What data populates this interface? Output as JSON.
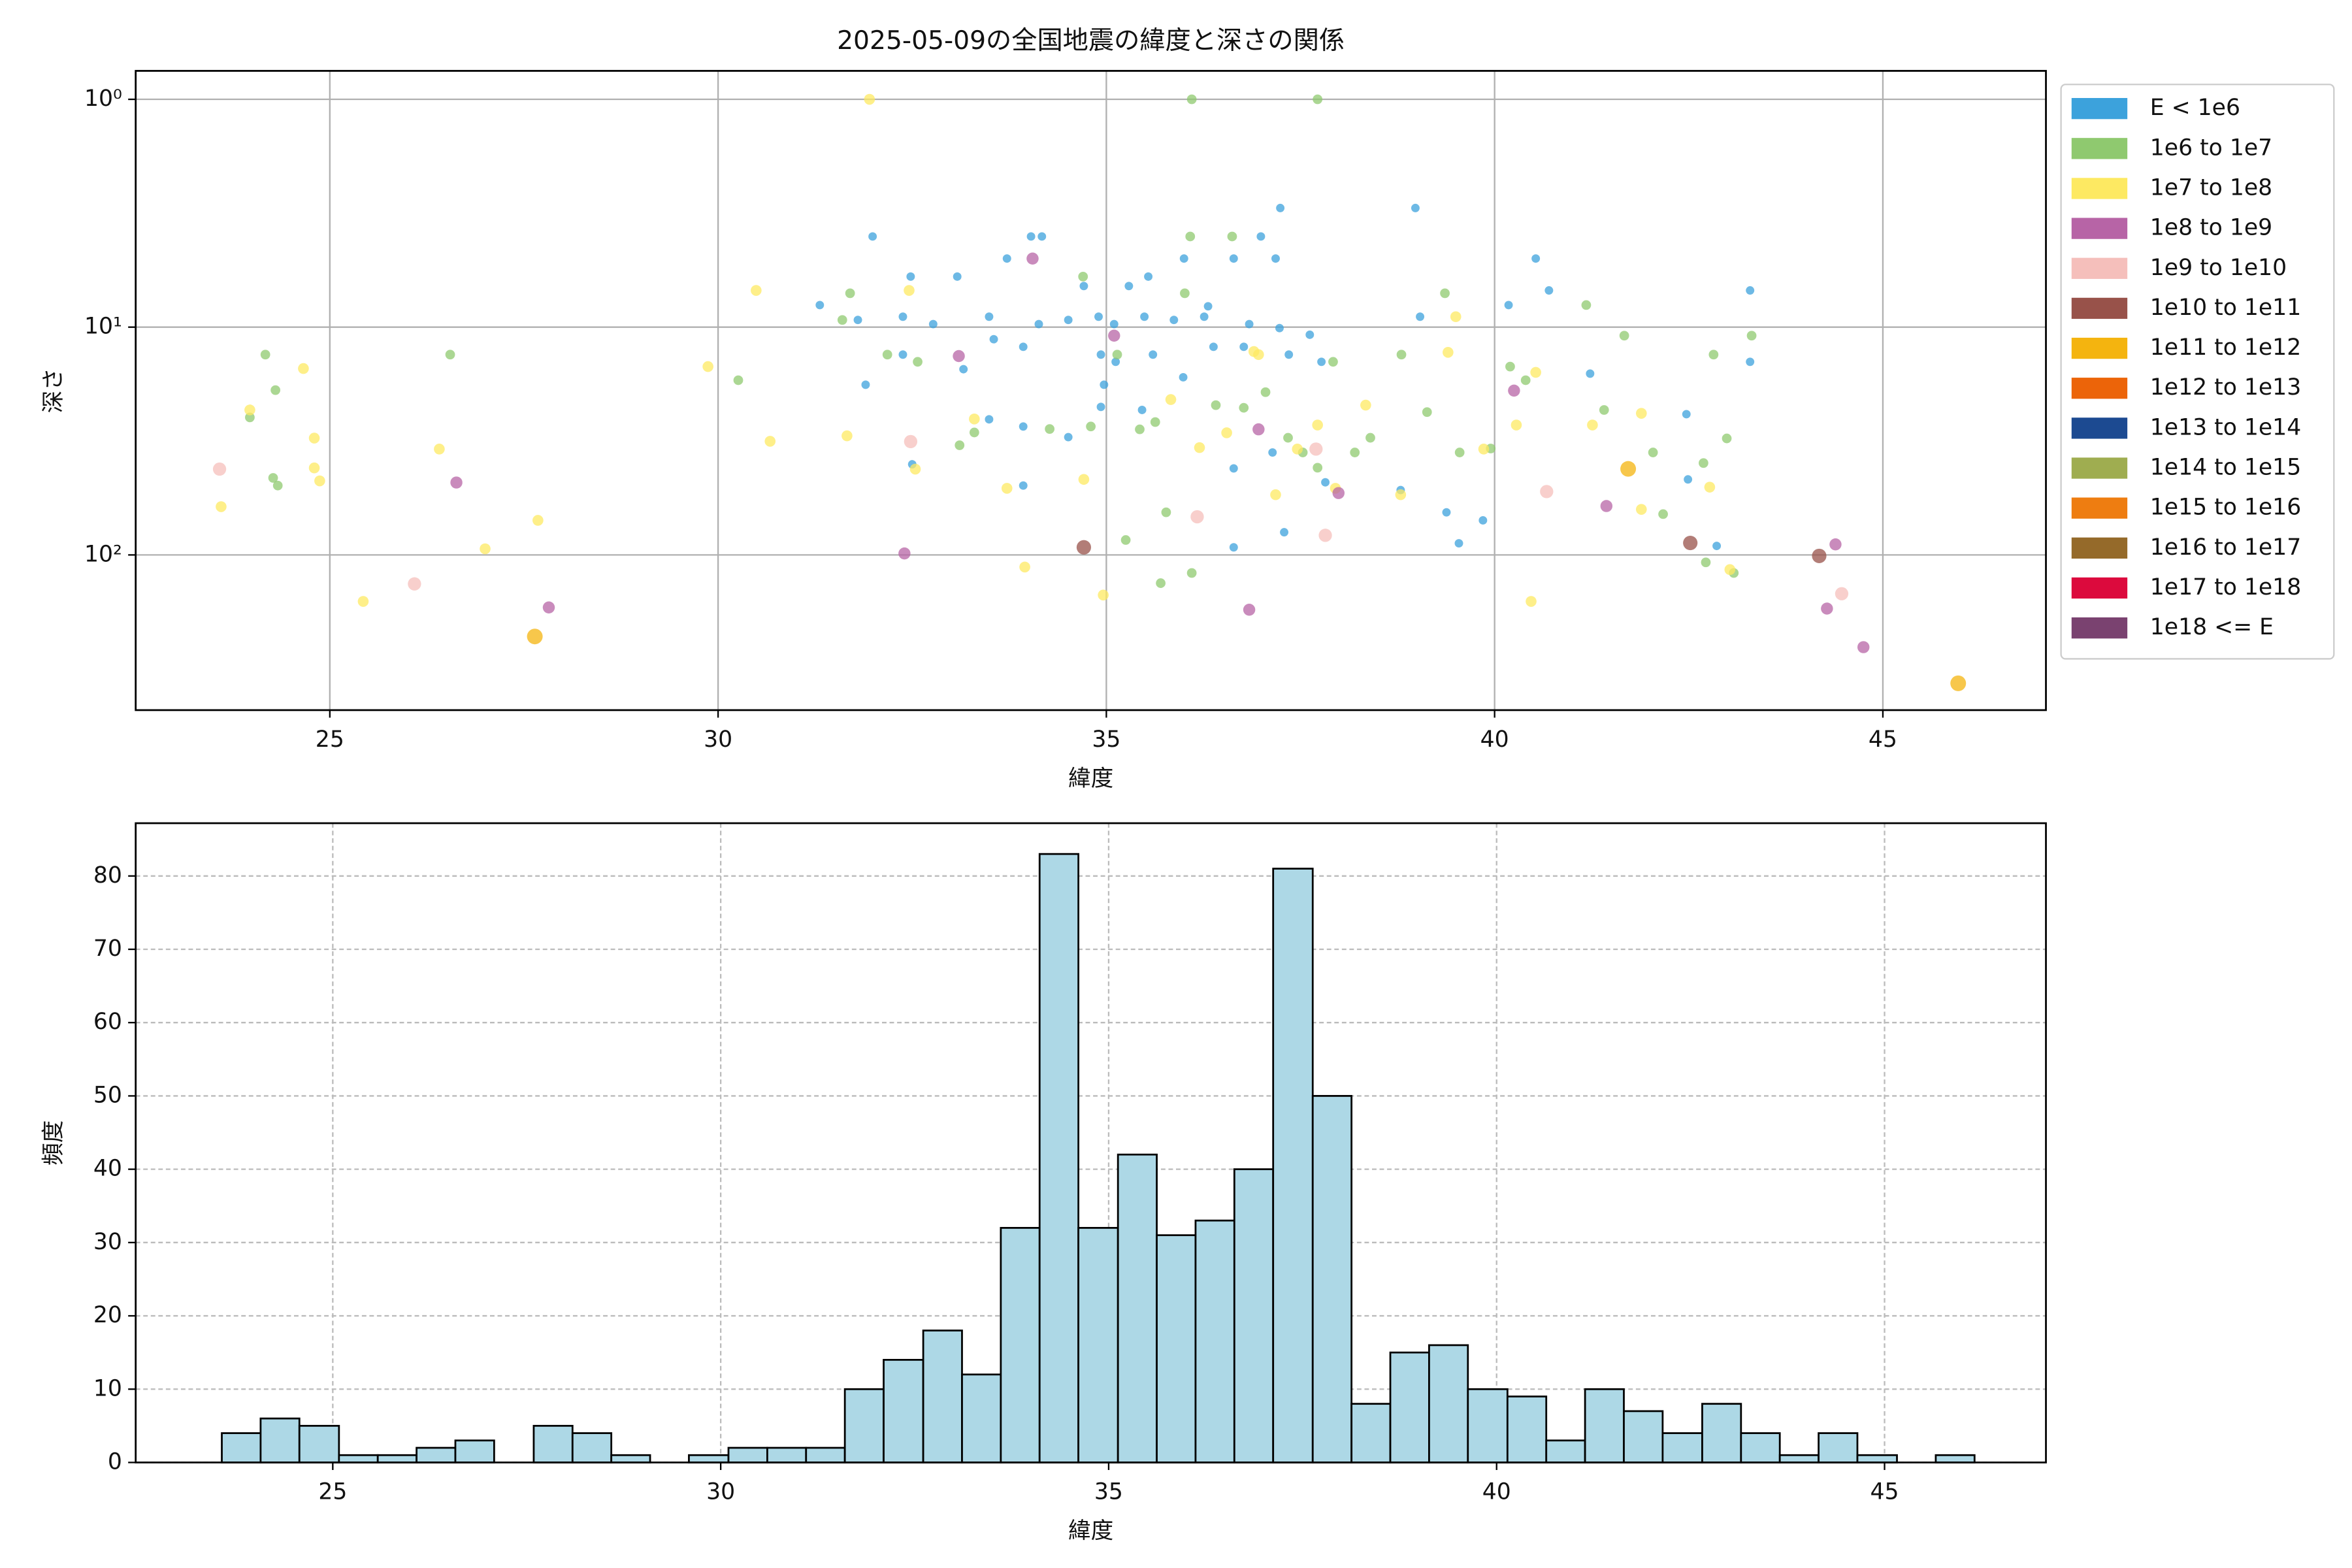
{
  "chart_data": [
    {
      "type": "scatter",
      "title": "2025-05-09の全国地震の緯度と深さの関係",
      "xlabel": "緯度",
      "ylabel": "深さ",
      "xlim": [
        22.5,
        47.1
      ],
      "xticks": [
        25,
        30,
        35,
        40,
        45
      ],
      "ylim": [
        480,
        0.75
      ],
      "log_y": true,
      "yticks": [
        {
          "value": 1,
          "label": "10⁰"
        },
        {
          "value": 10,
          "label": "10¹"
        },
        {
          "value": 100,
          "label": "10²"
        }
      ],
      "grid": true,
      "legend": "outside upper right",
      "series": [
        {
          "name": "E < 1e6",
          "color": "#3ca2dc",
          "x": [
            31.99,
            32.48,
            33.08,
            33.72,
            34.03,
            34.17,
            34.71,
            35.29,
            35.54,
            36.0,
            36.31,
            36.64,
            36.99,
            37.24,
            37.18,
            40.53,
            38.98,
            40.7,
            43.29,
            31.31,
            31.8,
            32.38,
            32.77,
            33.49,
            34.13,
            34.51,
            34.9,
            35.1,
            35.49,
            35.87,
            36.26,
            36.84,
            37.23,
            37.62,
            40.18,
            39.04,
            43.29,
            31.9,
            32.38,
            33.16,
            33.55,
            33.93,
            34.93,
            34.97,
            35.12,
            35.6,
            35.99,
            36.38,
            36.77,
            37.35,
            37.77,
            41.23,
            33.49,
            33.93,
            34.51,
            34.93,
            35.46,
            36.64,
            37.14,
            37.82,
            38.79,
            39.38,
            39.85,
            42.49,
            42.47,
            32.5,
            33.93,
            37.29,
            39.54,
            42.86,
            36.64
          ],
          "values": [
            4.0,
            6.0,
            6.0,
            5.0,
            4.0,
            4.0,
            6.6,
            6.6,
            6.0,
            5.0,
            8.1,
            5.0,
            4.0,
            3.0,
            5.0,
            5.0,
            3.0,
            6.9,
            6.9,
            8.0,
            9.3,
            9.0,
            9.7,
            9.0,
            9.7,
            9.3,
            9.0,
            9.7,
            9.0,
            9.3,
            9.0,
            9.7,
            10.1,
            10.8,
            8.0,
            9.0,
            14.2,
            17.9,
            13.2,
            15.3,
            11.3,
            12.2,
            13.2,
            17.9,
            14.2,
            13.2,
            16.6,
            12.2,
            12.2,
            13.2,
            14.2,
            16.0,
            25.4,
            27.3,
            30.4,
            22.4,
            23.1,
            41.7,
            35.5,
            48.0,
            51.9,
            65.0,
            70.5,
            46.6,
            24.1,
            40.0,
            49.6,
            79.5,
            88.9,
            91.3,
            92.6
          ]
        },
        {
          "name": "1e6 to 1e7",
          "color": "#8fc96f",
          "x": [
            24.17,
            23.97,
            24.3,
            24.27,
            24.33,
            26.55,
            30.26,
            31.6,
            31.7,
            32.18,
            32.57,
            33.11,
            33.3,
            34.27,
            34.7,
            35.14,
            35.43,
            35.63,
            36.01,
            36.08,
            36.41,
            36.62,
            36.77,
            37.05,
            37.34,
            37.53,
            37.72,
            37.92,
            38.2,
            38.4,
            38.8,
            39.13,
            39.36,
            39.55,
            39.95,
            40.2,
            40.4,
            41.18,
            41.41,
            41.67,
            42.04,
            42.17,
            42.69,
            42.82,
            42.72,
            42.99,
            43.08,
            43.31,
            36.1,
            35.7,
            35.25,
            36.1,
            37.72,
            34.8,
            35.77
          ],
          "values": [
            13.2,
            24.9,
            18.9,
            45.9,
            49.6,
            13.2,
            17.1,
            9.3,
            7.1,
            13.2,
            14.2,
            33,
            29,
            28,
            6.0,
            13.2,
            28.1,
            26.1,
            7.1,
            4.0,
            22,
            4.0,
            22.6,
            19.3,
            30.6,
            35.5,
            41.4,
            14.2,
            35.5,
            30.6,
            13.2,
            23.6,
            7.1,
            35.5,
            34.1,
            14.9,
            17.1,
            8.0,
            23.1,
            10.9,
            35.5,
            66.2,
            39.5,
            13.2,
            107.8,
            30.8,
            120,
            10.9,
            120,
            133,
            86,
            1.0,
            1.0,
            27.3,
            65
          ]
        },
        {
          "name": "1e7 to 1e8",
          "color": "#fde962",
          "x": [
            23.97,
            23.6,
            24.66,
            24.8,
            24.8,
            24.87,
            25.43,
            26.41,
            27.0,
            27.68,
            29.87,
            30.49,
            30.67,
            31.66,
            31.95,
            32.46,
            32.54,
            33.3,
            33.72,
            33.95,
            34.71,
            34.96,
            35.83,
            36.2,
            36.55,
            36.96,
            37.18,
            37.46,
            37.72,
            37.95,
            38.34,
            38.79,
            39.4,
            39.5,
            39.86,
            40.28,
            40.47,
            40.53,
            41.26,
            41.89,
            41.89,
            42.77,
            43.03,
            36.9
          ],
          "values": [
            23.1,
            61.4,
            15.2,
            30.7,
            41.5,
            47.3,
            160,
            34.3,
            94,
            70.5,
            14.9,
            6.9,
            31.7,
            30,
            1.0,
            6.9,
            42,
            25.3,
            51,
            113,
            46.6,
            150,
            20.8,
            33.8,
            29.1,
            13.2,
            54.4,
            34.3,
            26.9,
            51,
            22,
            54.4,
            12.9,
            9.0,
            34.3,
            26.9,
            160,
            15.8,
            26.9,
            23.9,
            63.1,
            50.4,
            116,
            12.8
          ]
        },
        {
          "name": "1e8 to 1e9",
          "color": "#b764a6",
          "x": [
            26.63,
            27.82,
            32.4,
            33.1,
            34.05,
            35.1,
            36.96,
            36.84,
            37.99,
            40.25,
            41.44,
            44.28,
            44.39,
            44.75
          ],
          "values": [
            48.1,
            170,
            98.5,
            13.4,
            5.0,
            10.9,
            28.1,
            174,
            53.5,
            19,
            61,
            172,
            89.9,
            254
          ]
        },
        {
          "name": "1e9 to 1e10",
          "color": "#f5bfbb",
          "x": [
            23.58,
            26.09,
            32.48,
            36.17,
            37.7,
            37.82,
            40.67,
            44.47
          ],
          "values": [
            42,
            134,
            31.8,
            68,
            34.3,
            82,
            52.7,
            148
          ]
        },
        {
          "name": "1e10 to 1e11",
          "color": "#98524a",
          "x": [
            34.71,
            42.52,
            44.18
          ],
          "values": [
            92.6,
            88.6,
            101
          ]
        },
        {
          "name": "1e11 to 1e12",
          "color": "#f4b40f",
          "x": [
            27.64,
            41.72,
            45.97
          ],
          "values": [
            228,
            41.9,
            366
          ]
        },
        {
          "name": "1e12 to 1e13",
          "color": "#ec6409",
          "x": [],
          "values": []
        },
        {
          "name": "1e13 to 1e14",
          "color": "#1c4a91",
          "x": [],
          "values": []
        },
        {
          "name": "1e14 to 1e15",
          "color": "#9fad50",
          "x": [],
          "values": []
        },
        {
          "name": "1e15 to 1e16",
          "color": "#ee7d11",
          "x": [],
          "values": []
        },
        {
          "name": "1e16 to 1e17",
          "color": "#956a2a",
          "x": [],
          "values": []
        },
        {
          "name": "1e17 to 1e18",
          "color": "#dc0a3d",
          "x": [],
          "values": []
        },
        {
          "name": "1e18 <= E",
          "color": "#7a4270",
          "x": [],
          "values": []
        }
      ]
    },
    {
      "type": "histogram",
      "xlabel": "緯度",
      "ylabel": "頻度",
      "color": "#add8e6",
      "edgecolor": "#000000",
      "bins": [
        23.57,
        24.07,
        24.57,
        25.08,
        25.58,
        26.08,
        26.58,
        27.08,
        27.59,
        28.09,
        28.59,
        29.09,
        29.59,
        30.1,
        30.6,
        31.1,
        31.6,
        32.1,
        32.61,
        33.11,
        33.61,
        34.11,
        34.61,
        35.12,
        35.62,
        36.12,
        36.62,
        37.12,
        37.63,
        38.13,
        38.63,
        39.13,
        39.63,
        40.14,
        40.64,
        41.14,
        41.64,
        42.14,
        42.65,
        43.15,
        43.65,
        44.15,
        44.65,
        45.16,
        45.66,
        46.16
      ],
      "values": [
        4,
        6,
        5,
        1,
        1,
        2,
        3,
        0,
        5,
        4,
        1,
        0,
        1,
        2,
        2,
        2,
        10,
        14,
        18,
        12,
        32,
        83,
        32,
        42,
        31,
        33,
        40,
        81,
        50,
        8,
        15,
        16,
        10,
        9,
        3,
        10,
        7,
        4,
        8,
        4,
        1,
        4,
        1,
        0,
        1
      ],
      "xlim": [
        22.46,
        47.08
      ],
      "xticks": [
        25,
        30,
        35,
        40,
        45
      ],
      "ylim": [
        0,
        87.2
      ],
      "yticks": [
        0,
        10,
        20,
        30,
        40,
        50,
        60,
        70,
        80
      ],
      "grid": true,
      "grid_style": "dashed"
    }
  ]
}
